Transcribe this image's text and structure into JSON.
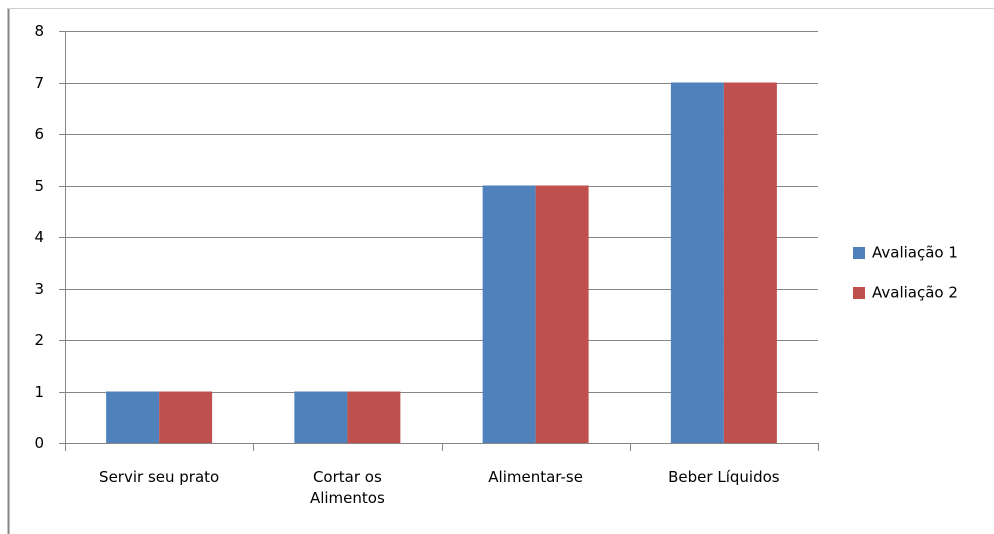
{
  "chart_data": {
    "type": "bar",
    "categories": [
      "Servir seu prato",
      "Cortar os Alimentos",
      "Alimentar-se",
      "Beber Líquidos"
    ],
    "series": [
      {
        "name": "Avaliação 1",
        "color": "#4f81bd",
        "values": [
          1,
          1,
          5,
          7
        ]
      },
      {
        "name": "Avaliação 2",
        "color": "#c0504d",
        "values": [
          1,
          1,
          5,
          7
        ]
      }
    ],
    "ylim": [
      0,
      8
    ],
    "yticks": [
      0,
      1,
      2,
      3,
      4,
      5,
      6,
      7,
      8
    ],
    "grid": true,
    "legend": "right"
  }
}
